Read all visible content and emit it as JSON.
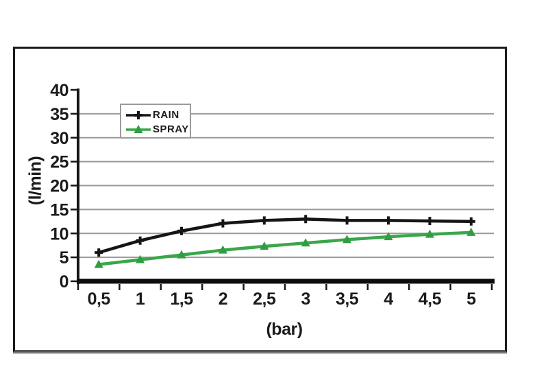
{
  "chart_data": {
    "type": "line",
    "title": "",
    "xlabel": "(bar)",
    "ylabel": "(l/min)",
    "x_tick_labels": [
      "0,5",
      "1",
      "1,5",
      "2",
      "2,5",
      "3",
      "3,5",
      "4",
      "4,5",
      "5"
    ],
    "x_values": [
      0.5,
      1,
      1.5,
      2,
      2.5,
      3,
      3.5,
      4,
      4.5,
      5
    ],
    "ylim": [
      0,
      40
    ],
    "yticks": [
      0,
      5,
      10,
      15,
      20,
      25,
      30,
      35,
      40
    ],
    "grid": "horizontal-gray",
    "legend_position": "top-left-inside",
    "series": [
      {
        "name": "RAIN",
        "color": "#151515",
        "marker": "plus",
        "values": [
          6,
          8.5,
          10.5,
          12.1,
          12.7,
          13,
          12.7,
          12.7,
          12.6,
          12.5
        ]
      },
      {
        "name": "SPRAY",
        "color": "#3aa64a",
        "marker": "triangle-up",
        "marker_color": "#2f9e41",
        "values": [
          3.5,
          4.5,
          5.5,
          6.5,
          7.3,
          8,
          8.7,
          9.3,
          9.8,
          10.2
        ]
      }
    ]
  },
  "colors": {
    "gridline": "#9a9a9a",
    "axis": "#161616",
    "zero_line": "#0d0d0d",
    "text": "#1c1c1c",
    "legend_border": "#9b9b9b",
    "background": "#ffffff"
  }
}
